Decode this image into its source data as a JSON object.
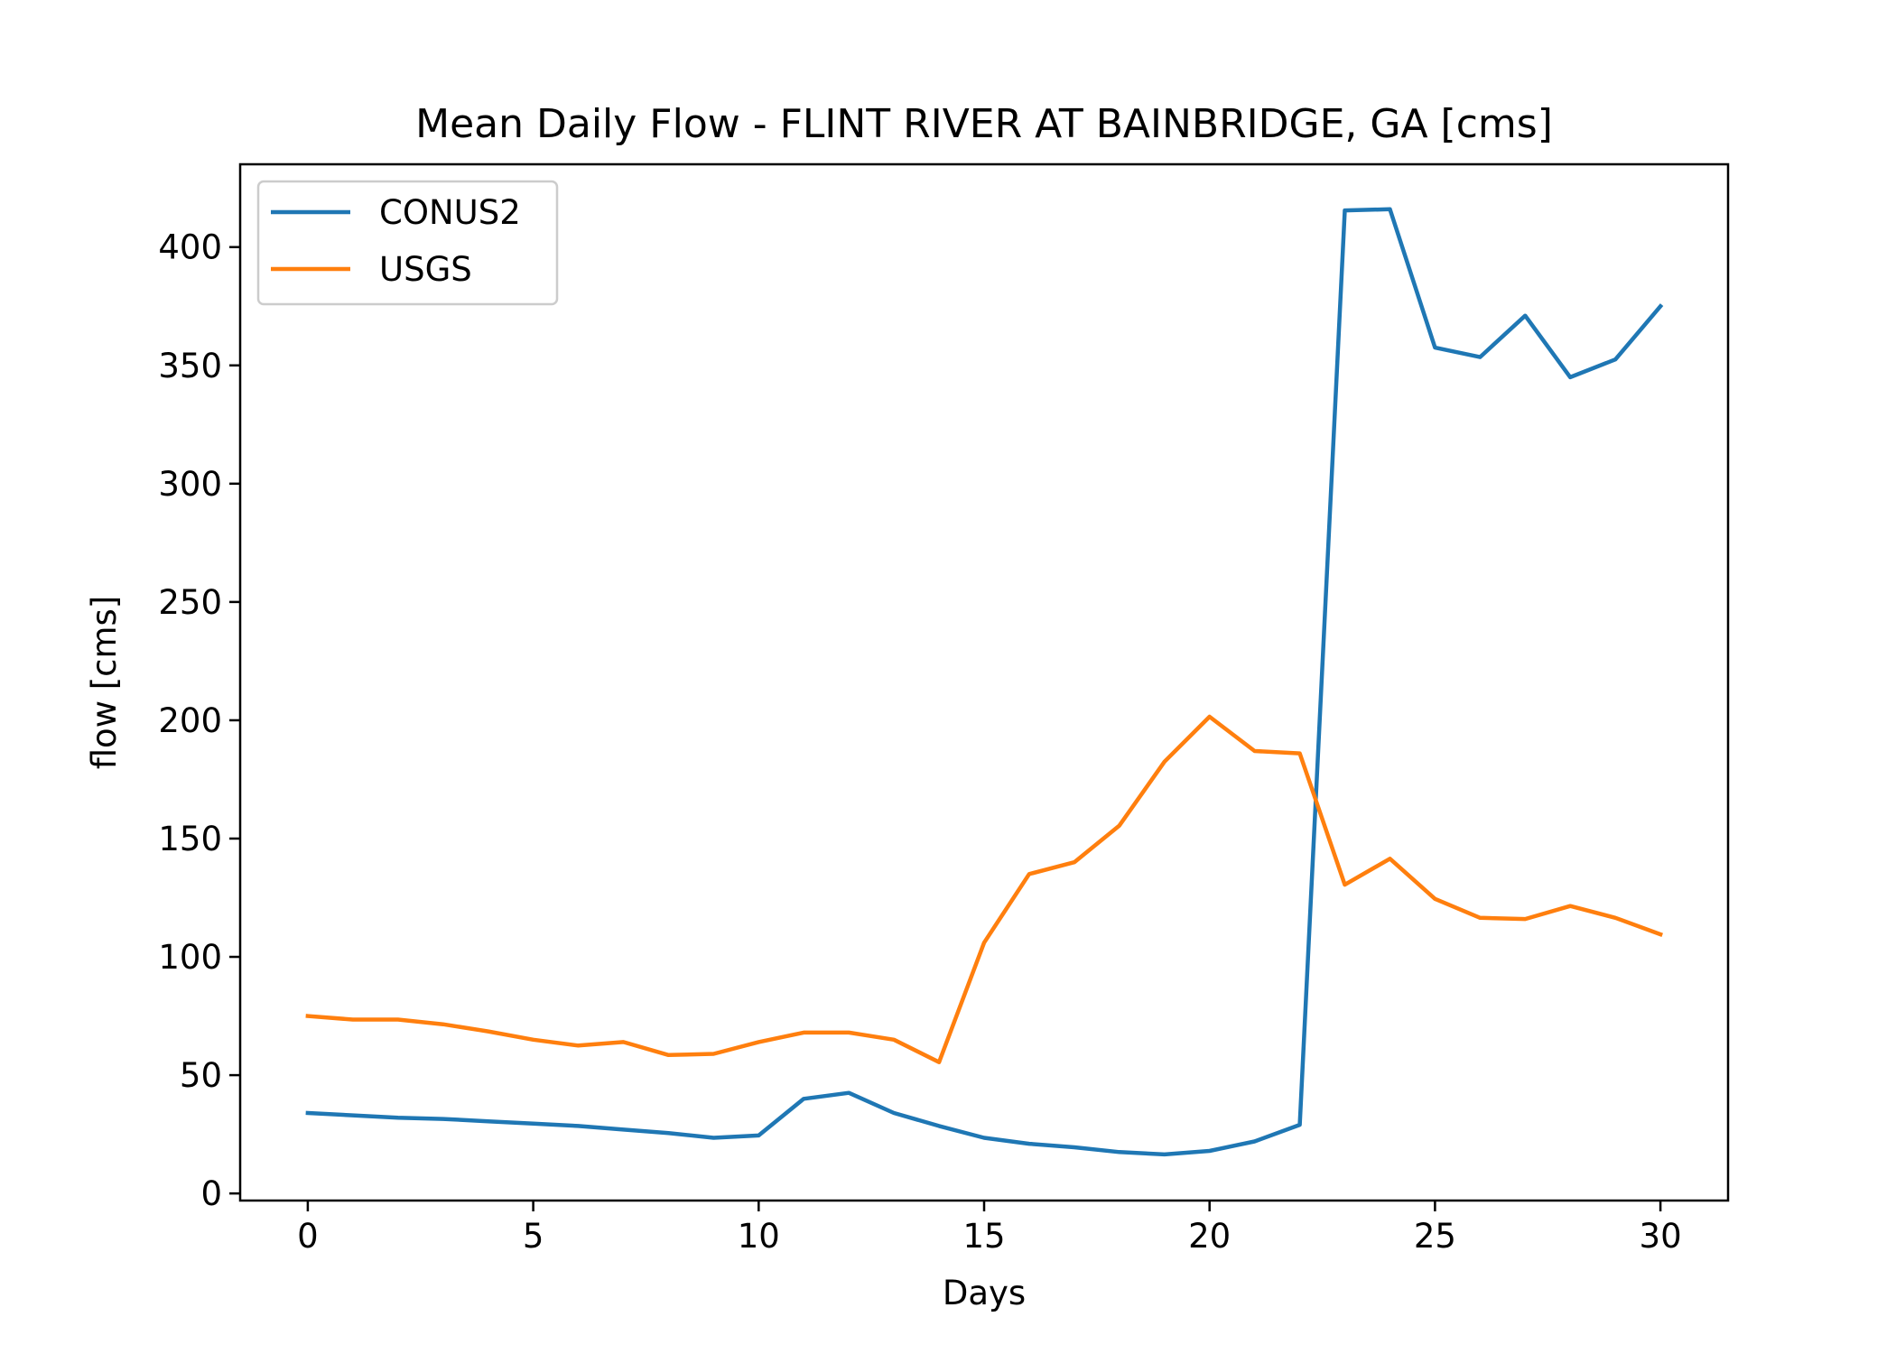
{
  "chart_data": {
    "type": "line",
    "title": "Mean Daily Flow - FLINT RIVER AT BAINBRIDGE, GA [cms]",
    "xlabel": "Days",
    "ylabel": "flow [cms]",
    "xlim": [
      -1.5,
      31.5
    ],
    "ylim": [
      -3,
      435
    ],
    "xticks": [
      0,
      5,
      10,
      15,
      20,
      25,
      30
    ],
    "yticks": [
      0,
      50,
      100,
      150,
      200,
      250,
      300,
      350,
      400
    ],
    "grid": false,
    "legend_position": "upper-left",
    "x": [
      0,
      1,
      2,
      3,
      4,
      5,
      6,
      7,
      8,
      9,
      10,
      11,
      12,
      13,
      14,
      15,
      16,
      17,
      18,
      19,
      20,
      21,
      22,
      23,
      24,
      25,
      26,
      27,
      28,
      29,
      30
    ],
    "series": [
      {
        "name": "CONUS2",
        "color": "#1f77b4",
        "values": [
          34,
          33,
          32,
          31.5,
          30.5,
          29.5,
          28.5,
          27,
          25.5,
          23.5,
          24.5,
          40,
          42.5,
          34,
          28.5,
          23.5,
          21,
          19.5,
          17.5,
          16.5,
          18,
          22,
          29,
          415.5,
          416,
          357.5,
          353.5,
          371,
          345,
          352.5,
          375
        ]
      },
      {
        "name": "USGS",
        "color": "#ff7f0e",
        "values": [
          75,
          73.5,
          73.5,
          71.5,
          68.5,
          65,
          62.5,
          64,
          58.5,
          59,
          64,
          68,
          68,
          65,
          55.5,
          106,
          135,
          140,
          155.5,
          182.5,
          201.5,
          187,
          186,
          130.5,
          141.5,
          124.5,
          116.5,
          116,
          121.5,
          116.5,
          109.5
        ]
      }
    ]
  }
}
